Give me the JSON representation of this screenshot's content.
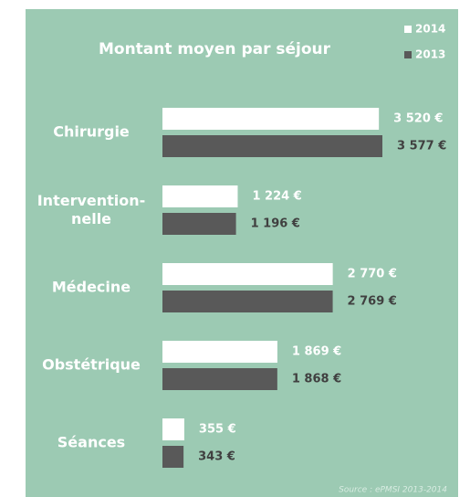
{
  "chart_data": {
    "type": "hbar",
    "title": "Montant moyen par séjour",
    "source": "Source : ePMSI 2013-2014",
    "categories": [
      "Chirurgie",
      "Intervention-\nnelle",
      "Médecine",
      "Obstétrique",
      "Séances"
    ],
    "series": [
      {
        "name": "2014",
        "color": "#ffffff",
        "values": [
          3520,
          1224,
          2770,
          1869,
          355
        ],
        "value_labels": [
          "3 520 €",
          "1 224 €",
          "2 770 €",
          "1 869 €",
          "355 €"
        ]
      },
      {
        "name": "2013",
        "color": "#595959",
        "values": [
          3577,
          1196,
          2769,
          1868,
          343
        ],
        "value_labels": [
          "3 577 €",
          "1 196 €",
          "2 769 €",
          "1 868 €",
          "343 €"
        ]
      }
    ],
    "legend": "top-right",
    "background": "#9ccab3"
  }
}
